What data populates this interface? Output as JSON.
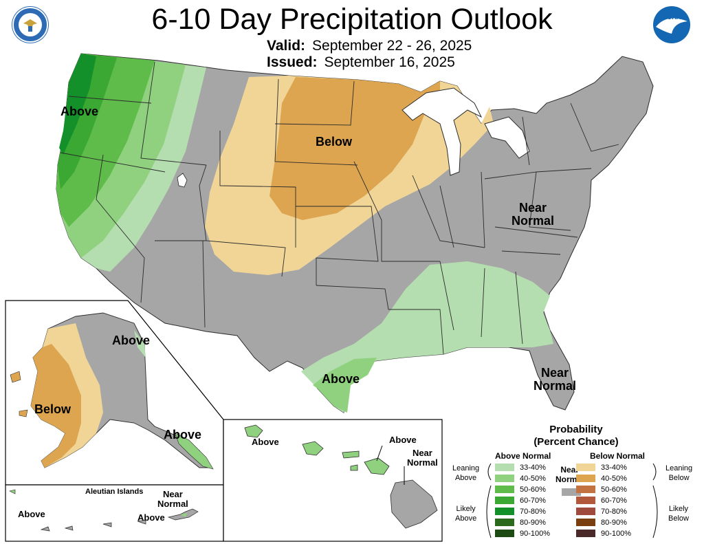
{
  "header": {
    "title": "6-10 Day Precipitation Outlook",
    "valid_label": "Valid:",
    "valid_value": "September 22 - 26, 2025",
    "issued_label": "Issued:",
    "issued_value": "September 16, 2025"
  },
  "map_labels": {
    "conus_above": "Above",
    "conus_below": "Below",
    "conus_near_normal": "Near\nNormal",
    "texas_above": "Above",
    "florida_near_normal": "Near\nNormal",
    "alaska_above_north": "Above",
    "alaska_below": "Below",
    "alaska_above_southeast": "Above",
    "aleutian_title": "Aleutian Islands",
    "aleutian_above_west": "Above",
    "aleutian_near_normal": "Near\nNormal",
    "aleutian_above_east": "Above",
    "hawaii_above_west": "Above",
    "hawaii_above_maui": "Above",
    "hawaii_near_normal": "Near\nNormal"
  },
  "legend": {
    "title": "Probability\n(Percent Chance)",
    "above_header": "Above Normal",
    "below_header": "Below Normal",
    "near_header": "Near\nNormal",
    "leaning_above": "Leaning\nAbove",
    "likely_above": "Likely\nAbove",
    "leaning_below": "Leaning\nBelow",
    "likely_below": "Likely\nBelow",
    "above_rows": [
      {
        "label": "33-40%",
        "color": "#b5deb0"
      },
      {
        "label": "40-50%",
        "color": "#90d180"
      },
      {
        "label": "50-60%",
        "color": "#5fbb4a"
      },
      {
        "label": "60-70%",
        "color": "#3aa832"
      },
      {
        "label": "70-80%",
        "color": "#14902a"
      },
      {
        "label": "80-90%",
        "color": "#2b6a1c"
      },
      {
        "label": "90-100%",
        "color": "#1d4a12"
      }
    ],
    "below_rows": [
      {
        "label": "33-40%",
        "color": "#f1d597"
      },
      {
        "label": "40-50%",
        "color": "#dda550"
      },
      {
        "label": "50-60%",
        "color": "#c37342"
      },
      {
        "label": "60-70%",
        "color": "#b2593d"
      },
      {
        "label": "70-80%",
        "color": "#9e4b3d"
      },
      {
        "label": "80-90%",
        "color": "#7a3f11"
      },
      {
        "label": "90-100%",
        "color": "#4a2a28"
      }
    ],
    "near_color": "#a6a6a6"
  },
  "colors": {
    "near_normal": "#a6a6a6",
    "above_33_40": "#b5deb0",
    "above_40_50": "#90d180",
    "above_50_60": "#5fbb4a",
    "above_60_70": "#3aa832",
    "above_70_80": "#14902a",
    "below_33_40": "#f1d597",
    "below_40_50": "#dda550",
    "state_border": "#2a2a2a",
    "noaa_blue": "#1467b3"
  },
  "logos": {
    "commerce_seal": "department-of-commerce-seal",
    "noaa_logo": "noaa-logo",
    "noaa_text": "NOAA"
  }
}
